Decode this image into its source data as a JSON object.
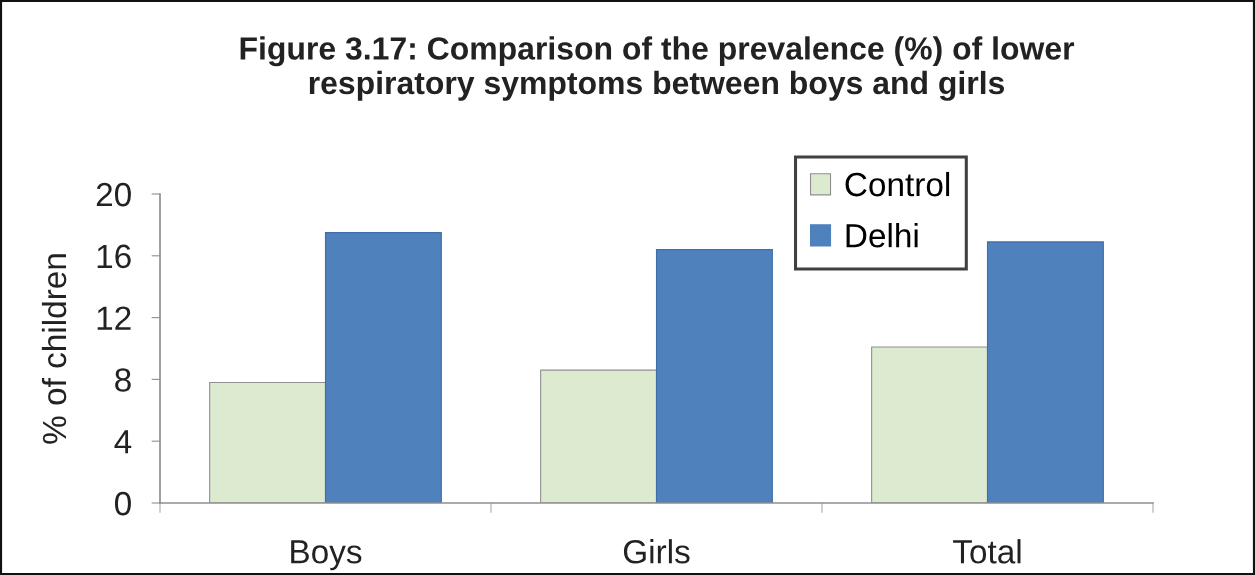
{
  "chart_data": {
    "type": "bar",
    "title": "Figure 3.17: Comparison of the prevalence (%) of lower\nrespiratory symptoms between boys and girls",
    "ylabel": "% of children",
    "categories": [
      "Boys",
      "Girls",
      "Total"
    ],
    "series": [
      {
        "name": "Control",
        "color": "#dcebd0",
        "values": [
          7.8,
          8.6,
          10.1
        ]
      },
      {
        "name": "Delhi",
        "color": "#4f81bd",
        "values": [
          17.5,
          16.4,
          16.9
        ]
      }
    ],
    "ylim": [
      0,
      20
    ],
    "yticks": [
      0,
      4,
      8,
      12,
      16,
      20
    ],
    "legend": "top right"
  }
}
